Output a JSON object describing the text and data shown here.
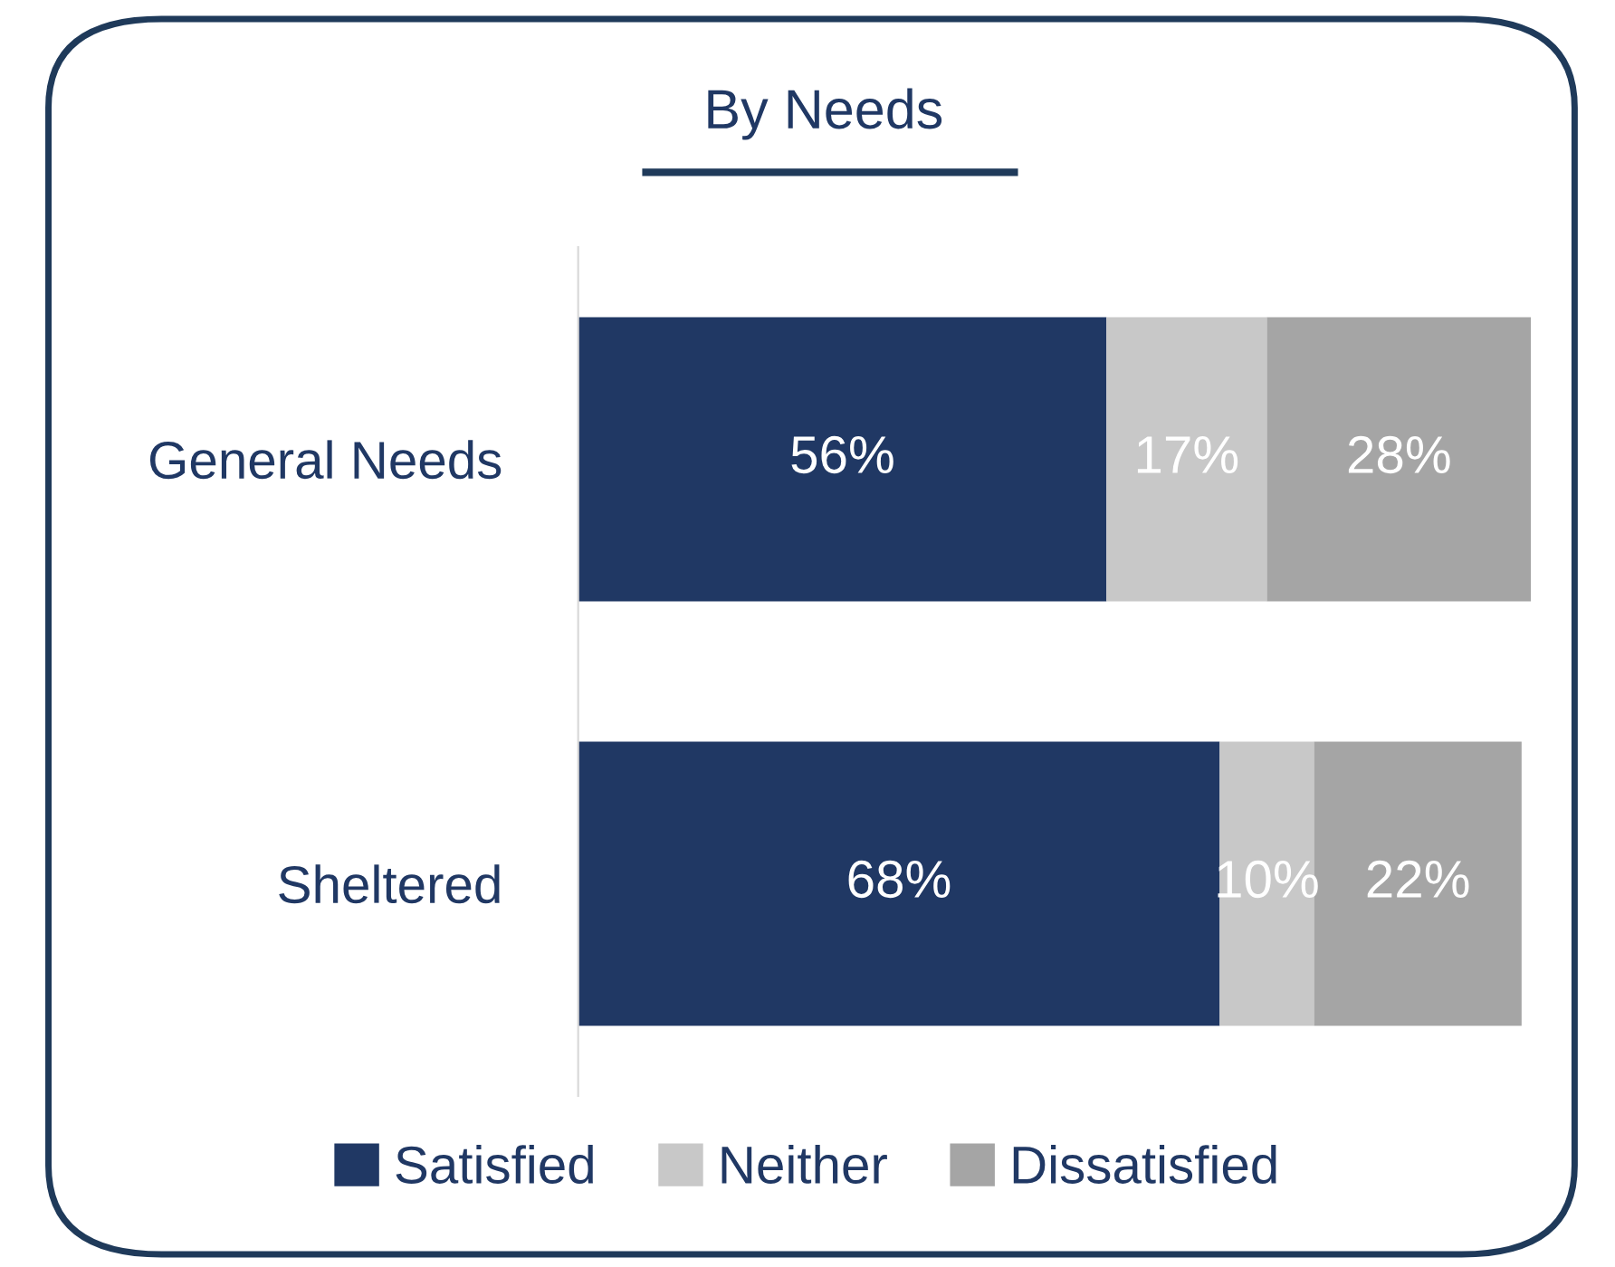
{
  "chart_data": {
    "type": "bar",
    "orientation": "horizontal",
    "stacked": true,
    "title": "By Needs",
    "categories": [
      "General Needs",
      "Sheltered"
    ],
    "series": [
      {
        "name": "Satisfied",
        "color": "#203864",
        "values": [
          56,
          68
        ],
        "value_labels": [
          "56%",
          "68%"
        ]
      },
      {
        "name": "Neither",
        "color": "#c8c8c8",
        "values": [
          17,
          10
        ],
        "value_labels": [
          "17%",
          "10%"
        ]
      },
      {
        "name": "Dissatisfied",
        "color": "#a5a5a5",
        "values": [
          28,
          22
        ],
        "value_labels": [
          "28%",
          "22%"
        ]
      }
    ],
    "xlim": [
      0,
      101
    ],
    "tick_labels": "y",
    "grid": false,
    "legend": "bottom"
  }
}
